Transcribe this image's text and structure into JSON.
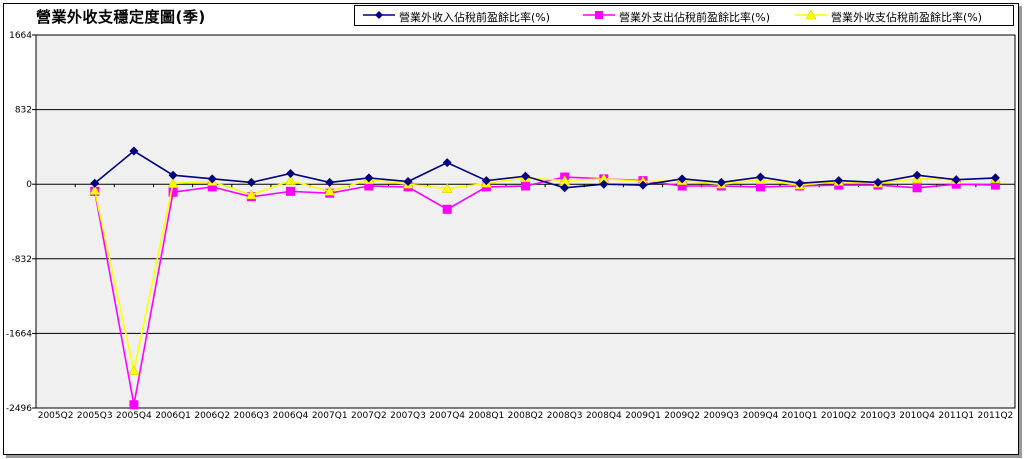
{
  "chart_data": {
    "type": "line",
    "title": "營業外收支穩定度圖(季)",
    "categories": [
      "2005Q2",
      "2005Q3",
      "2005Q4",
      "2006Q1",
      "2006Q2",
      "2006Q3",
      "2006Q4",
      "2007Q1",
      "2007Q2",
      "2007Q3",
      "2007Q4",
      "2008Q1",
      "2008Q2",
      "2008Q3",
      "2008Q4",
      "2009Q1",
      "2009Q2",
      "2009Q3",
      "2009Q4",
      "2010Q1",
      "2010Q2",
      "2010Q3",
      "2010Q4",
      "2011Q1",
      "2011Q2"
    ],
    "y_ticks": [
      "1664",
      "832",
      "0",
      "-832",
      "-1664",
      "-2496"
    ],
    "ylim": [
      -2496,
      1664
    ],
    "grid": true,
    "legend_position": "top",
    "series": [
      {
        "name": "營業外收入佔稅前盈餘比率(%)",
        "color": "#000080",
        "marker": "diamond",
        "values": [
          null,
          10,
          370,
          100,
          60,
          20,
          120,
          20,
          70,
          30,
          240,
          40,
          90,
          -40,
          0,
          -10,
          60,
          20,
          80,
          10,
          40,
          20,
          100,
          50,
          70
        ]
      },
      {
        "name": "營業外支出佔稅前盈餘比率(%)",
        "color": "#ff00ff",
        "marker": "square",
        "values": [
          null,
          -80,
          -2460,
          -90,
          -30,
          -140,
          -80,
          -100,
          -20,
          -30,
          -280,
          -30,
          -20,
          80,
          60,
          40,
          -20,
          -20,
          -30,
          -20,
          -10,
          -10,
          -40,
          0,
          -10
        ]
      },
      {
        "name": "營業外收支佔稅前盈餘比率(%)",
        "color": "#ffff00",
        "marker": "triangle",
        "values": [
          null,
          -70,
          -2080,
          10,
          30,
          -120,
          40,
          -80,
          50,
          0,
          -50,
          10,
          70,
          40,
          60,
          30,
          40,
          0,
          50,
          -10,
          30,
          10,
          60,
          50,
          60
        ]
      }
    ]
  }
}
